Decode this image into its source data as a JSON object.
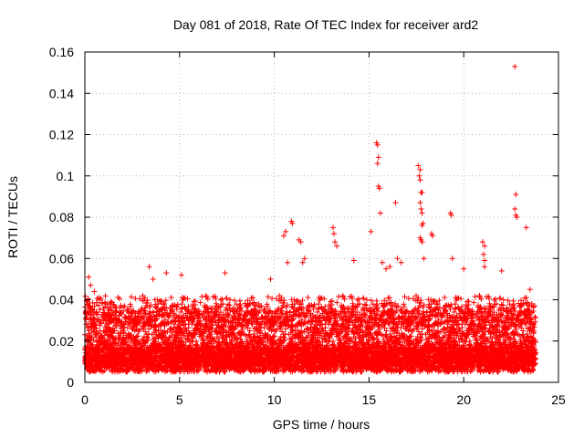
{
  "chart_data": {
    "type": "scatter",
    "title": "Day 081 of 2018, Rate Of TEC Index for receiver ard2",
    "xlabel": "GPS time / hours",
    "ylabel": "ROTI / TECUs",
    "xlim": [
      0,
      25
    ],
    "ylim": [
      0,
      0.16
    ],
    "xticks": [
      0,
      5,
      10,
      15,
      20,
      25
    ],
    "yticks": [
      0,
      0.02,
      0.04,
      0.06,
      0.08,
      0.1,
      0.12,
      0.14,
      0.16
    ],
    "xtick_labels": [
      "0",
      "5",
      "10",
      "15",
      "20",
      "25"
    ],
    "ytick_labels": [
      "0",
      "0.02",
      "0.04",
      "0.06",
      "0.08",
      "0.1",
      "0.12",
      "0.14",
      "0.16"
    ],
    "grid": true,
    "marker": "+",
    "color": "#ff0000",
    "x_range_of_data": [
      0,
      23.8
    ],
    "typical_band": [
      0.005,
      0.04
    ],
    "series": [
      {
        "name": "ard2",
        "points": [
          [
            0.2,
            0.051
          ],
          [
            0.3,
            0.047
          ],
          [
            0.5,
            0.044
          ],
          [
            3.4,
            0.056
          ],
          [
            3.6,
            0.05
          ],
          [
            4.3,
            0.053
          ],
          [
            5.1,
            0.052
          ],
          [
            7.4,
            0.053
          ],
          [
            9.8,
            0.05
          ],
          [
            10.5,
            0.071
          ],
          [
            10.6,
            0.073
          ],
          [
            10.7,
            0.058
          ],
          [
            10.9,
            0.078
          ],
          [
            10.95,
            0.077
          ],
          [
            11.3,
            0.069
          ],
          [
            11.4,
            0.068
          ],
          [
            11.5,
            0.058
          ],
          [
            11.6,
            0.06
          ],
          [
            13.1,
            0.075
          ],
          [
            13.15,
            0.072
          ],
          [
            13.2,
            0.068
          ],
          [
            13.3,
            0.066
          ],
          [
            14.2,
            0.059
          ],
          [
            15.1,
            0.073
          ],
          [
            15.4,
            0.116
          ],
          [
            15.45,
            0.115
          ],
          [
            15.5,
            0.109
          ],
          [
            15.45,
            0.106
          ],
          [
            15.5,
            0.095
          ],
          [
            15.55,
            0.094
          ],
          [
            15.6,
            0.082
          ],
          [
            15.7,
            0.058
          ],
          [
            15.9,
            0.055
          ],
          [
            16.1,
            0.056
          ],
          [
            16.4,
            0.087
          ],
          [
            16.5,
            0.06
          ],
          [
            16.7,
            0.058
          ],
          [
            17.6,
            0.105
          ],
          [
            17.7,
            0.103
          ],
          [
            17.65,
            0.1
          ],
          [
            17.7,
            0.098
          ],
          [
            17.8,
            0.092
          ],
          [
            17.75,
            0.092
          ],
          [
            17.7,
            0.087
          ],
          [
            17.75,
            0.084
          ],
          [
            17.8,
            0.082
          ],
          [
            17.85,
            0.077
          ],
          [
            17.8,
            0.076
          ],
          [
            17.7,
            0.07
          ],
          [
            17.75,
            0.069
          ],
          [
            17.8,
            0.068
          ],
          [
            17.9,
            0.06
          ],
          [
            18.3,
            0.072
          ],
          [
            18.35,
            0.071
          ],
          [
            19.3,
            0.082
          ],
          [
            19.35,
            0.081
          ],
          [
            19.4,
            0.06
          ],
          [
            20.0,
            0.055
          ],
          [
            21.0,
            0.068
          ],
          [
            21.1,
            0.066
          ],
          [
            21.05,
            0.062
          ],
          [
            21.1,
            0.059
          ],
          [
            21.1,
            0.056
          ],
          [
            22.0,
            0.054
          ],
          [
            22.7,
            0.153
          ],
          [
            22.75,
            0.091
          ],
          [
            22.7,
            0.084
          ],
          [
            22.75,
            0.081
          ],
          [
            22.8,
            0.08
          ],
          [
            23.3,
            0.075
          ],
          [
            23.5,
            0.045
          ]
        ]
      }
    ]
  }
}
